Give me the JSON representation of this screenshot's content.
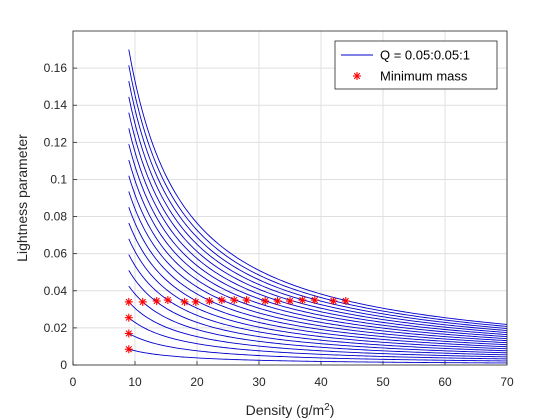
{
  "chart_data": {
    "type": "line",
    "xlabel": "Density (g/m",
    "xlabel_superscript": "2",
    "xlabel_suffix": ")",
    "ylabel": "Lightness parameter",
    "xlim": [
      0,
      70
    ],
    "ylim": [
      0,
      0.18
    ],
    "xticks": [
      "0",
      "10",
      "20",
      "30",
      "40",
      "50",
      "60",
      "70"
    ],
    "yticks": [
      "0",
      "0.02",
      "0.04",
      "0.06",
      "0.08",
      "0.1",
      "0.12",
      "0.14",
      "0.16"
    ],
    "grid": true,
    "legend_position": "top-right",
    "series": [
      {
        "name": "Q = 0.05:0.05:1",
        "kind": "curve-family",
        "color": "#0000cc",
        "x_range": [
          9,
          70
        ],
        "formula": "y = k / x",
        "k_values": [
          0.0765,
          0.153,
          0.2295,
          0.306,
          0.3825,
          0.459,
          0.5355,
          0.612,
          0.6885,
          0.765,
          0.8415,
          0.918,
          0.9945,
          1.071,
          1.1475,
          1.224,
          1.3005,
          1.377,
          1.4535,
          1.53
        ]
      },
      {
        "name": "Minimum mass",
        "kind": "markers",
        "marker": "asterisk",
        "color": "#ff0000",
        "points": [
          {
            "x": 9,
            "y": 0.0085
          },
          {
            "x": 9,
            "y": 0.017
          },
          {
            "x": 9,
            "y": 0.0255
          },
          {
            "x": 9,
            "y": 0.034
          },
          {
            "x": 11.25,
            "y": 0.034
          },
          {
            "x": 13.5,
            "y": 0.0345
          },
          {
            "x": 15.3,
            "y": 0.035
          },
          {
            "x": 18,
            "y": 0.034
          },
          {
            "x": 19.8,
            "y": 0.034
          },
          {
            "x": 22,
            "y": 0.0345
          },
          {
            "x": 24,
            "y": 0.035
          },
          {
            "x": 26,
            "y": 0.035
          },
          {
            "x": 28,
            "y": 0.035
          },
          {
            "x": 31,
            "y": 0.0345
          },
          {
            "x": 33,
            "y": 0.0345
          },
          {
            "x": 35,
            "y": 0.0345
          },
          {
            "x": 37,
            "y": 0.035
          },
          {
            "x": 39,
            "y": 0.035
          },
          {
            "x": 42,
            "y": 0.0345
          },
          {
            "x": 44,
            "y": 0.0345
          }
        ]
      }
    ]
  }
}
